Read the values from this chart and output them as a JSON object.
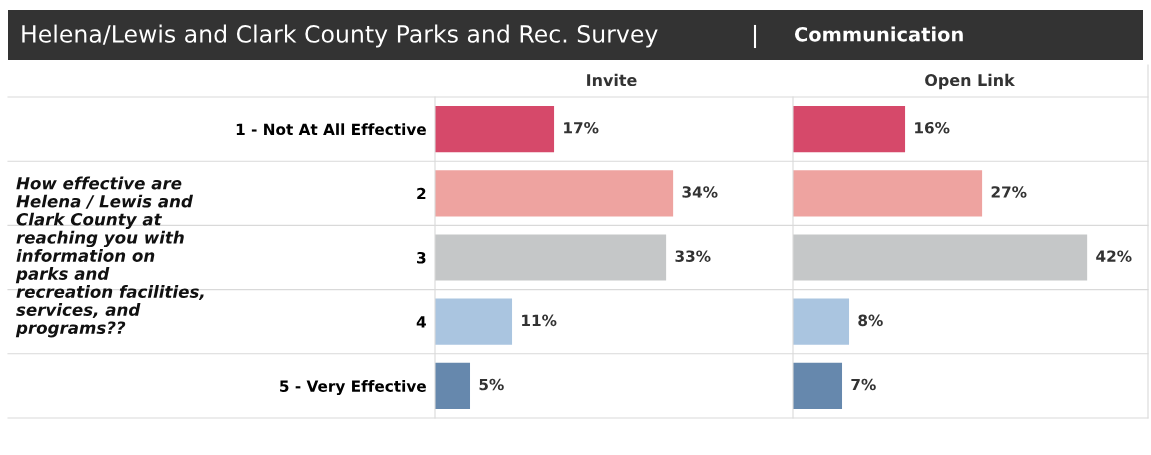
{
  "chart_data": [
    {
      "type": "bar",
      "orientation": "horizontal",
      "title": "Helena/Lewis and Clark County Parks and Rec. Survey",
      "xlabel": "Invite",
      "ylabel": "How effective are Helena / Lewis and Clark County at reaching you with information on parks and recreation facilities, services, and programs??",
      "tick_labels": "y",
      "categories": [
        "1 - Not At All Effective",
        "2",
        "3",
        "4",
        "5 - Very Effective"
      ],
      "values": [
        17,
        34,
        33,
        11,
        5
      ],
      "colors": [
        "#d6496a",
        "#eea3a0",
        "#c5c7c8",
        "#aac5e0",
        "#6688ad"
      ],
      "value_labels": [
        "17%",
        "34%",
        "33%",
        "11%",
        "5%"
      ]
    },
    {
      "type": "bar",
      "orientation": "horizontal",
      "title": "Communication",
      "xlabel": "Open Link",
      "tick_labels": false,
      "categories": [
        null,
        null,
        null,
        null,
        null
      ],
      "values": [
        16,
        27,
        42,
        8,
        7
      ],
      "colors": [
        "#d6496a",
        "#eea3a0",
        "#c5c7c8",
        "#aac5e0",
        "#6688ad"
      ],
      "value_labels": [
        "16%",
        "27%",
        "42%",
        "8%",
        "7%"
      ]
    }
  ]
}
